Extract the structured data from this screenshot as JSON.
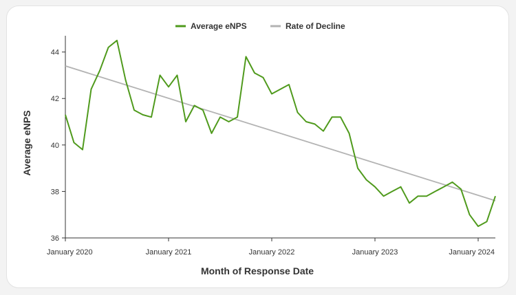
{
  "chart_data": {
    "type": "line",
    "xlabel": "Month of Response Date",
    "ylabel": "Average eNPS",
    "x_ticks": [
      "January 2020",
      "January 2021",
      "January 2022",
      "January 2023",
      "January 2024"
    ],
    "y_ticks": [
      36,
      38,
      40,
      42,
      44
    ],
    "ylim": [
      36,
      44.7
    ],
    "xlim": [
      "2020-01",
      "2024-03"
    ],
    "legend_position": "top-center",
    "grid": false,
    "series": [
      {
        "name": "Average eNPS",
        "color": "#4f9a1c",
        "x": [
          "2020-01",
          "2020-02",
          "2020-03",
          "2020-04",
          "2020-05",
          "2020-06",
          "2020-07",
          "2020-08",
          "2020-09",
          "2020-10",
          "2020-11",
          "2020-12",
          "2021-01",
          "2021-02",
          "2021-03",
          "2021-04",
          "2021-05",
          "2021-06",
          "2021-07",
          "2021-08",
          "2021-09",
          "2021-10",
          "2021-11",
          "2021-12",
          "2022-01",
          "2022-02",
          "2022-03",
          "2022-04",
          "2022-05",
          "2022-06",
          "2022-07",
          "2022-08",
          "2022-09",
          "2022-10",
          "2022-11",
          "2022-12",
          "2023-01",
          "2023-02",
          "2023-03",
          "2023-04",
          "2023-05",
          "2023-06",
          "2023-07",
          "2023-08",
          "2023-09",
          "2023-10",
          "2023-11",
          "2023-12",
          "2024-01",
          "2024-02",
          "2024-03"
        ],
        "values": [
          41.3,
          40.1,
          39.8,
          42.4,
          43.2,
          44.2,
          44.5,
          42.8,
          41.5,
          41.3,
          41.2,
          43.0,
          42.5,
          43.0,
          41.0,
          41.7,
          41.5,
          40.5,
          41.2,
          41.0,
          41.2,
          43.8,
          43.1,
          42.9,
          42.2,
          42.4,
          42.6,
          41.4,
          41.0,
          40.9,
          40.6,
          41.2,
          41.2,
          40.5,
          39.0,
          38.5,
          38.2,
          37.8,
          38.0,
          38.2,
          37.5,
          37.8,
          37.8,
          38.0,
          38.2,
          38.4,
          38.1,
          37.0,
          36.5,
          36.7,
          37.8
        ]
      },
      {
        "name": "Rate of Decline",
        "color": "#b3b3b3",
        "x": [
          "2020-01",
          "2024-03"
        ],
        "values": [
          43.4,
          37.6
        ]
      }
    ]
  }
}
